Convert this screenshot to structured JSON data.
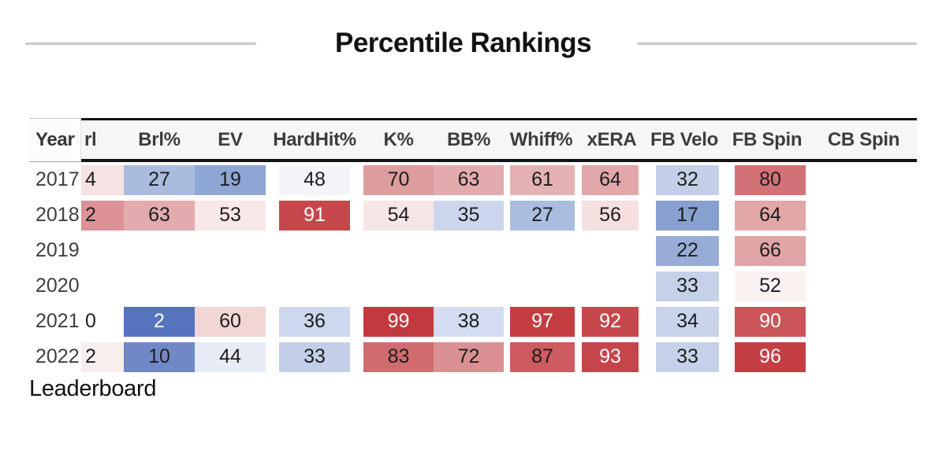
{
  "title": "Percentile Rankings",
  "leaderboard_label": "Leaderboard",
  "colors": {
    "high_red": "#c33a3e",
    "low_blue": "#5673be",
    "header_border": "#141414",
    "divider_gray": "#c9c9c9",
    "white_text": "#ffffff"
  },
  "table": {
    "columns": [
      {
        "key": "year",
        "label": "Year"
      },
      {
        "key": "brl-partial",
        "label": "rl"
      },
      {
        "key": "brl-pct",
        "label": "Brl%"
      },
      {
        "key": "ev",
        "label": "EV"
      },
      {
        "key": "hardhit-pct",
        "label": "HardHit%"
      },
      {
        "key": "k-pct",
        "label": "K%"
      },
      {
        "key": "bb-pct",
        "label": "BB%"
      },
      {
        "key": "whiff-pct",
        "label": "Whiff%"
      },
      {
        "key": "xera",
        "label": "xERA"
      },
      {
        "key": "fb-velo",
        "label": "FB Velo"
      },
      {
        "key": "fb-spin",
        "label": "FB Spin"
      },
      {
        "key": "cb-spin",
        "label": "CB Spin"
      }
    ],
    "rows": [
      {
        "year": "2017",
        "cells": [
          {
            "v": "4",
            "bg": "#f6e2e3"
          },
          {
            "v": "27",
            "bg": "#a9bcde"
          },
          {
            "v": "19",
            "bg": "#8ea6d3"
          },
          {
            "v": "48",
            "bg": "#f3f5fa"
          },
          {
            "v": "70",
            "bg": "#dd9c9e"
          },
          {
            "v": "63",
            "bg": "#e3abad"
          },
          {
            "v": "61",
            "bg": "#e5b1b2"
          },
          {
            "v": "64",
            "bg": "#e2a7a9"
          },
          {
            "v": "32",
            "bg": "#c3cfe8"
          },
          {
            "v": "80",
            "bg": "#d37276"
          },
          null
        ]
      },
      {
        "year": "2018",
        "cells": [
          {
            "v": "2",
            "bg": "#dc9297"
          },
          {
            "v": "63",
            "bg": "#e3abad"
          },
          {
            "v": "53",
            "bg": "#f8e8e8"
          },
          {
            "v": "91",
            "bg": "#c6484d",
            "fg": "#ffffff"
          },
          {
            "v": "54",
            "bg": "#f7e6e6"
          },
          {
            "v": "35",
            "bg": "#cbd6ec"
          },
          {
            "v": "27",
            "bg": "#aabdde"
          },
          {
            "v": "56",
            "bg": "#f5e0e0"
          },
          {
            "v": "17",
            "bg": "#87a0d0"
          },
          {
            "v": "64",
            "bg": "#e2a7a9"
          },
          null
        ]
      },
      {
        "year": "2019",
        "cells": [
          null,
          null,
          null,
          null,
          null,
          null,
          null,
          null,
          {
            "v": "22",
            "bg": "#97add7"
          },
          {
            "v": "66",
            "bg": "#e0a3a6"
          },
          null
        ]
      },
      {
        "year": "2020",
        "cells": [
          null,
          null,
          null,
          null,
          null,
          null,
          null,
          null,
          {
            "v": "33",
            "bg": "#c5d1e9"
          },
          {
            "v": "52",
            "bg": "#faf1f1"
          },
          null
        ]
      },
      {
        "year": "2021",
        "cells": [
          {
            "v": "0"
          },
          {
            "v": "2",
            "bg": "#5673be",
            "fg": "#ffffff"
          },
          {
            "v": "60",
            "bg": "#f2d6d4"
          },
          {
            "v": "36",
            "bg": "#cdd8ee"
          },
          {
            "v": "99",
            "bg": "#c33a3e",
            "fg": "#ffffff"
          },
          {
            "v": "38",
            "bg": "#d3dcf0"
          },
          {
            "v": "97",
            "bg": "#c43d41",
            "fg": "#ffffff"
          },
          {
            "v": "92",
            "bg": "#c6474c",
            "fg": "#ffffff"
          },
          {
            "v": "34",
            "bg": "#c9d4eb"
          },
          {
            "v": "90",
            "bg": "#ca565a",
            "fg": "#ffffff"
          },
          null
        ]
      },
      {
        "year": "2022",
        "cells": [
          {
            "v": "2",
            "bg": "#f9eeee"
          },
          {
            "v": "10",
            "bg": "#7089c6"
          },
          {
            "v": "44",
            "bg": "#e6ebf6"
          },
          {
            "v": "33",
            "bg": "#c3cfe9"
          },
          {
            "v": "83",
            "bg": "#d06c6f"
          },
          {
            "v": "72",
            "bg": "#db9194"
          },
          {
            "v": "87",
            "bg": "#cd5b5f"
          },
          {
            "v": "93",
            "bg": "#c5454a",
            "fg": "#ffffff"
          },
          {
            "v": "33",
            "bg": "#c5d1e9"
          },
          {
            "v": "96",
            "bg": "#c43f44",
            "fg": "#ffffff"
          },
          null
        ]
      }
    ]
  }
}
